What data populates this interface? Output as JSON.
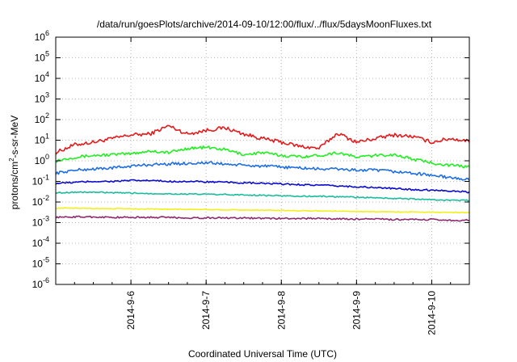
{
  "chart_data": {
    "type": "line",
    "title": "/data/run/goesPlots/archive/2014-09-10/12:00/flux/../flux/5daysMoonFluxes.txt",
    "xlabel": "Coordinated Universal Time (UTC)",
    "ylabel": {
      "base": "protons/cm",
      "sup": "2",
      "rest": "-s-sr-MeV"
    },
    "yscale": "log",
    "ylim": [
      1e-06,
      1000000.0
    ],
    "xlim": [
      "2014-09-05 00:00",
      "2014-09-10 12:00"
    ],
    "x_ticks": [
      "2014-9-6",
      "2014-9-7",
      "2014-9-8",
      "2014-9-9",
      "2014-9-10"
    ],
    "y_ticks": [
      {
        "base": "10",
        "exp": "6"
      },
      {
        "base": "10",
        "exp": "5"
      },
      {
        "base": "10",
        "exp": "4"
      },
      {
        "base": "10",
        "exp": "3"
      },
      {
        "base": "10",
        "exp": "2"
      },
      {
        "base": "10",
        "exp": "1"
      },
      {
        "base": "10",
        "exp": "0"
      },
      {
        "base": "10",
        "exp": "-1"
      },
      {
        "base": "10",
        "exp": "-2"
      },
      {
        "base": "10",
        "exp": "-3"
      },
      {
        "base": "10",
        "exp": "-4"
      },
      {
        "base": "10",
        "exp": "-5"
      },
      {
        "base": "10",
        "exp": "-6"
      }
    ],
    "grid": true,
    "legend": "none",
    "x": [
      "2014-09-05 00:00",
      "2014-09-05 06:00",
      "2014-09-05 12:00",
      "2014-09-05 18:00",
      "2014-09-06 00:00",
      "2014-09-06 06:00",
      "2014-09-06 12:00",
      "2014-09-06 18:00",
      "2014-09-07 00:00",
      "2014-09-07 06:00",
      "2014-09-07 12:00",
      "2014-09-07 18:00",
      "2014-09-08 00:00",
      "2014-09-08 06:00",
      "2014-09-08 12:00",
      "2014-09-08 18:00",
      "2014-09-09 00:00",
      "2014-09-09 06:00",
      "2014-09-09 12:00",
      "2014-09-09 18:00",
      "2014-09-10 00:00",
      "2014-09-10 06:00",
      "2014-09-10 12:00"
    ],
    "series": [
      {
        "color": "#e41a1c",
        "values": [
          2.5,
          6,
          8,
          12,
          18,
          20,
          50,
          20,
          30,
          40,
          20,
          12,
          8,
          5,
          4,
          22,
          8,
          12,
          18,
          15,
          8,
          12,
          9
        ]
      },
      {
        "color": "#22ee22",
        "values": [
          1.0,
          1.5,
          1.8,
          2.0,
          2.2,
          3.0,
          2.5,
          4.0,
          4.5,
          3.5,
          2.0,
          2.5,
          1.8,
          1.6,
          1.8,
          2.5,
          1.5,
          1.8,
          2.0,
          1.2,
          0.8,
          0.6,
          0.5
        ]
      },
      {
        "color": "#1f6fe0",
        "values": [
          0.25,
          0.35,
          0.4,
          0.45,
          0.55,
          0.65,
          0.7,
          0.75,
          0.8,
          0.7,
          0.6,
          0.55,
          0.5,
          0.45,
          0.4,
          0.4,
          0.35,
          0.35,
          0.3,
          0.25,
          0.2,
          0.15,
          0.12
        ]
      },
      {
        "color": "#0c0ccc",
        "values": [
          0.08,
          0.09,
          0.1,
          0.1,
          0.11,
          0.11,
          0.1,
          0.1,
          0.095,
          0.09,
          0.085,
          0.08,
          0.075,
          0.07,
          0.065,
          0.06,
          0.055,
          0.05,
          0.045,
          0.04,
          0.038,
          0.035,
          0.03
        ]
      },
      {
        "color": "#1abc9c",
        "values": [
          0.028,
          0.03,
          0.03,
          0.028,
          0.027,
          0.026,
          0.025,
          0.024,
          0.024,
          0.023,
          0.022,
          0.021,
          0.02,
          0.019,
          0.019,
          0.018,
          0.017,
          0.016,
          0.015,
          0.014,
          0.013,
          0.012,
          0.012
        ]
      },
      {
        "color": "#f2ef1a",
        "values": [
          0.005,
          0.005,
          0.0049,
          0.0048,
          0.0047,
          0.0046,
          0.0045,
          0.0044,
          0.0043,
          0.0042,
          0.0041,
          0.004,
          0.0039,
          0.0038,
          0.0037,
          0.0036,
          0.0035,
          0.0034,
          0.0033,
          0.0033,
          0.0032,
          0.0032,
          0.0031
        ]
      },
      {
        "color": "#8e2a6e",
        "values": [
          0.0018,
          0.0019,
          0.0019,
          0.0018,
          0.0018,
          0.0018,
          0.0018,
          0.0017,
          0.0017,
          0.0017,
          0.0017,
          0.0016,
          0.0016,
          0.0016,
          0.0016,
          0.0015,
          0.0015,
          0.0015,
          0.0014,
          0.0014,
          0.0014,
          0.0013,
          0.0013
        ]
      }
    ]
  }
}
